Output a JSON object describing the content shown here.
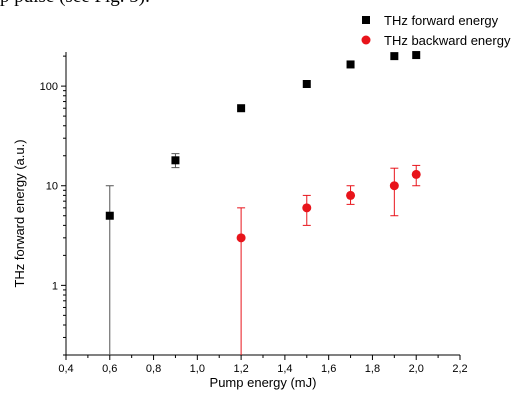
{
  "page": {
    "top_text": "p pulse (see Fig. 5)."
  },
  "chart_data": {
    "type": "scatter",
    "xlabel": "Pump energy (mJ)",
    "ylabel": "THz forward energy (a.u.)",
    "xlim": [
      0.4,
      2.2
    ],
    "ylim": [
      0.2,
      220
    ],
    "yscale": "log",
    "x_ticks": [
      0.4,
      0.6,
      0.8,
      1.0,
      1.2,
      1.4,
      1.6,
      1.8,
      2.0,
      2.2
    ],
    "x_tick_labels": [
      "0,4",
      "0,6",
      "0,8",
      "1,0",
      "1,2",
      "1,4",
      "1,6",
      "1,8",
      "2,0",
      "2,2"
    ],
    "y_ticks": [
      1,
      10,
      100
    ],
    "y_tick_labels": [
      "1",
      "10",
      "100"
    ],
    "legend_position": "top-right",
    "series": [
      {
        "name": "THz forward energy",
        "marker": "square",
        "color": "#000000",
        "x": [
          0.6,
          0.9,
          1.2,
          1.5,
          1.7,
          1.9,
          2.0
        ],
        "y": [
          5,
          18,
          60,
          105,
          165,
          200,
          205
        ],
        "err_low": [
          4.9,
          2.8,
          0,
          0,
          0,
          0,
          0
        ],
        "err_high": [
          5,
          3,
          0,
          0,
          0,
          0,
          0
        ]
      },
      {
        "name": "THz backward energy",
        "marker": "circle",
        "color": "#e8141b",
        "x": [
          1.2,
          1.5,
          1.7,
          1.9,
          2.0
        ],
        "y": [
          3,
          6,
          8,
          10,
          13
        ],
        "err_low": [
          2.95,
          2,
          1.5,
          5,
          3
        ],
        "err_high": [
          3,
          2,
          2,
          5,
          3
        ]
      }
    ]
  }
}
